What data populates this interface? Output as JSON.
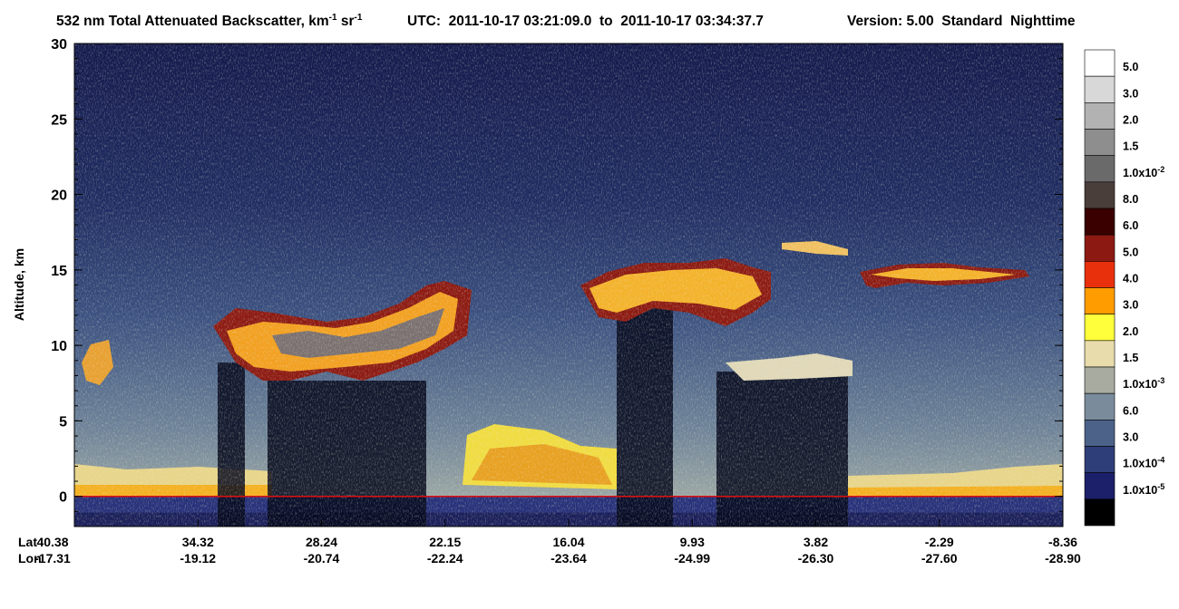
{
  "chart_data": {
    "type": "heatmap",
    "title": {
      "quantity": "532 nm Total Attenuated Backscatter, km",
      "exp1": "-1",
      "unit2": " sr",
      "exp2": "-1",
      "utc": "UTC:  2011-10-17 03:21:09.0  to  2011-10-17 03:34:37.7",
      "version": "Version: 5.00  Standard  Nighttime"
    },
    "y_label": "Altitude, km",
    "ylim": [
      -2,
      30
    ],
    "yticks": [
      0,
      5,
      10,
      15,
      20,
      25,
      30
    ],
    "x_row_labels": [
      "Lat",
      "Lon"
    ],
    "x_ticks": [
      {
        "lat": "40.38",
        "lon": "-17.31"
      },
      {
        "lat": "34.32",
        "lon": "-19.12"
      },
      {
        "lat": "28.24",
        "lon": "-20.74"
      },
      {
        "lat": "22.15",
        "lon": "-22.24"
      },
      {
        "lat": "16.04",
        "lon": "-23.64"
      },
      {
        "lat": "9.93",
        "lon": "-24.99"
      },
      {
        "lat": "3.82",
        "lon": "-26.30"
      },
      {
        "lat": "-2.29",
        "lon": "-27.60"
      },
      {
        "lat": "-8.36",
        "lon": "-28.90"
      }
    ],
    "colorbar": [
      {
        "color": "#ffffff",
        "label": "5.0"
      },
      {
        "color": "#d8d8d8",
        "label": "3.0"
      },
      {
        "color": "#b2b2b2",
        "label": "2.0"
      },
      {
        "color": "#8e8e8e",
        "label": "1.5"
      },
      {
        "color": "#6a6a6a",
        "label": "1.0x10",
        "exp": "-2"
      },
      {
        "color": "#4a3e3a",
        "label": "8.0"
      },
      {
        "color": "#3a0000",
        "label": "6.0"
      },
      {
        "color": "#8c1a12",
        "label": "5.0"
      },
      {
        "color": "#e8300c",
        "label": "4.0"
      },
      {
        "color": "#ff9c00",
        "label": "3.0"
      },
      {
        "color": "#ffff3c",
        "label": "2.0"
      },
      {
        "color": "#e8dcac",
        "label": "1.5"
      },
      {
        "color": "#a8aca0",
        "label": "1.0x10",
        "exp": "-3"
      },
      {
        "color": "#7a8c9c",
        "label": "6.0"
      },
      {
        "color": "#4c6288",
        "label": "3.0"
      },
      {
        "color": "#2e3e78",
        "label": "1.0x10",
        "exp": "-4"
      },
      {
        "color": "#1c206a",
        "label": "1.0x10",
        "exp": "-5"
      },
      {
        "color": "#000000"
      }
    ]
  }
}
